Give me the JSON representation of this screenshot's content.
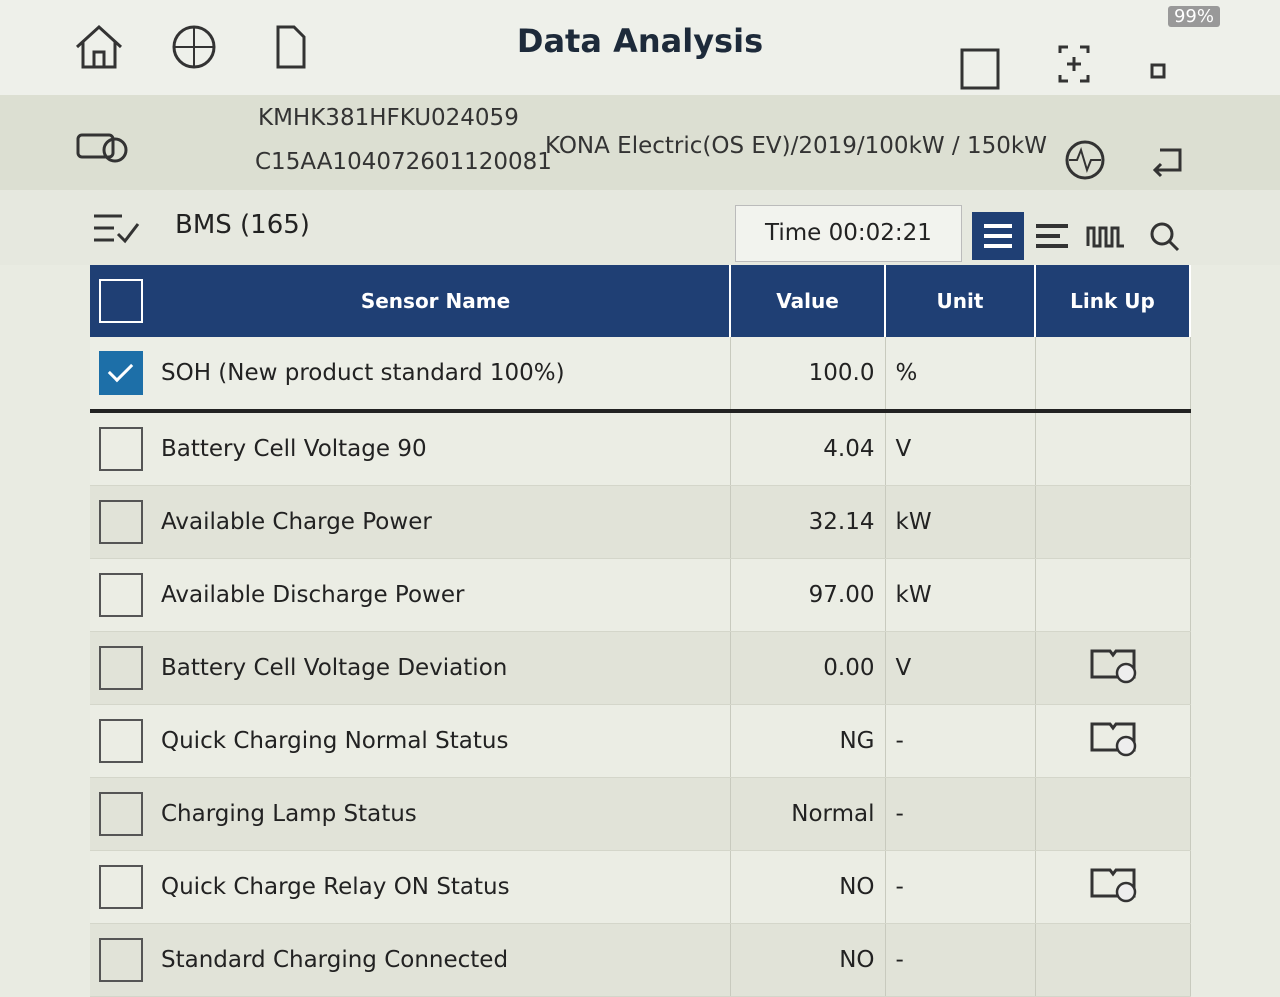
{
  "status": {
    "battery": "99%"
  },
  "header": {
    "title": "Data Analysis"
  },
  "vehicle": {
    "vin": "KMHK381HFKU024059",
    "id": "C15AA104072601120081",
    "model": "KONA Electric(OS EV)/2019/100kW / 150kW"
  },
  "toolbar": {
    "system": "BMS (165)",
    "time": "Time 00:02:21"
  },
  "table": {
    "columns": [
      "Sensor Name",
      "Value",
      "Unit",
      "Link Up"
    ],
    "pinned": {
      "name": "SOH (New product standard 100%)",
      "value": "100.0",
      "unit": "%",
      "checked": true
    },
    "rows": [
      {
        "name": "Battery Cell Voltage 90",
        "value": "4.04",
        "unit": "V",
        "link": false
      },
      {
        "name": "Available Charge Power",
        "value": "32.14",
        "unit": "kW",
        "link": false
      },
      {
        "name": "Available Discharge Power",
        "value": "97.00",
        "unit": "kW",
        "link": false
      },
      {
        "name": "Battery Cell Voltage Deviation",
        "value": "0.00",
        "unit": "V",
        "link": true
      },
      {
        "name": "Quick Charging Normal Status",
        "value": "NG",
        "unit": "-",
        "link": true
      },
      {
        "name": "Charging Lamp Status",
        "value": "Normal",
        "unit": "-",
        "link": false
      },
      {
        "name": "Quick Charge Relay ON Status",
        "value": "NO",
        "unit": "-",
        "link": true
      },
      {
        "name": "Standard Charging Connected",
        "value": "NO",
        "unit": "-",
        "link": false
      }
    ]
  }
}
